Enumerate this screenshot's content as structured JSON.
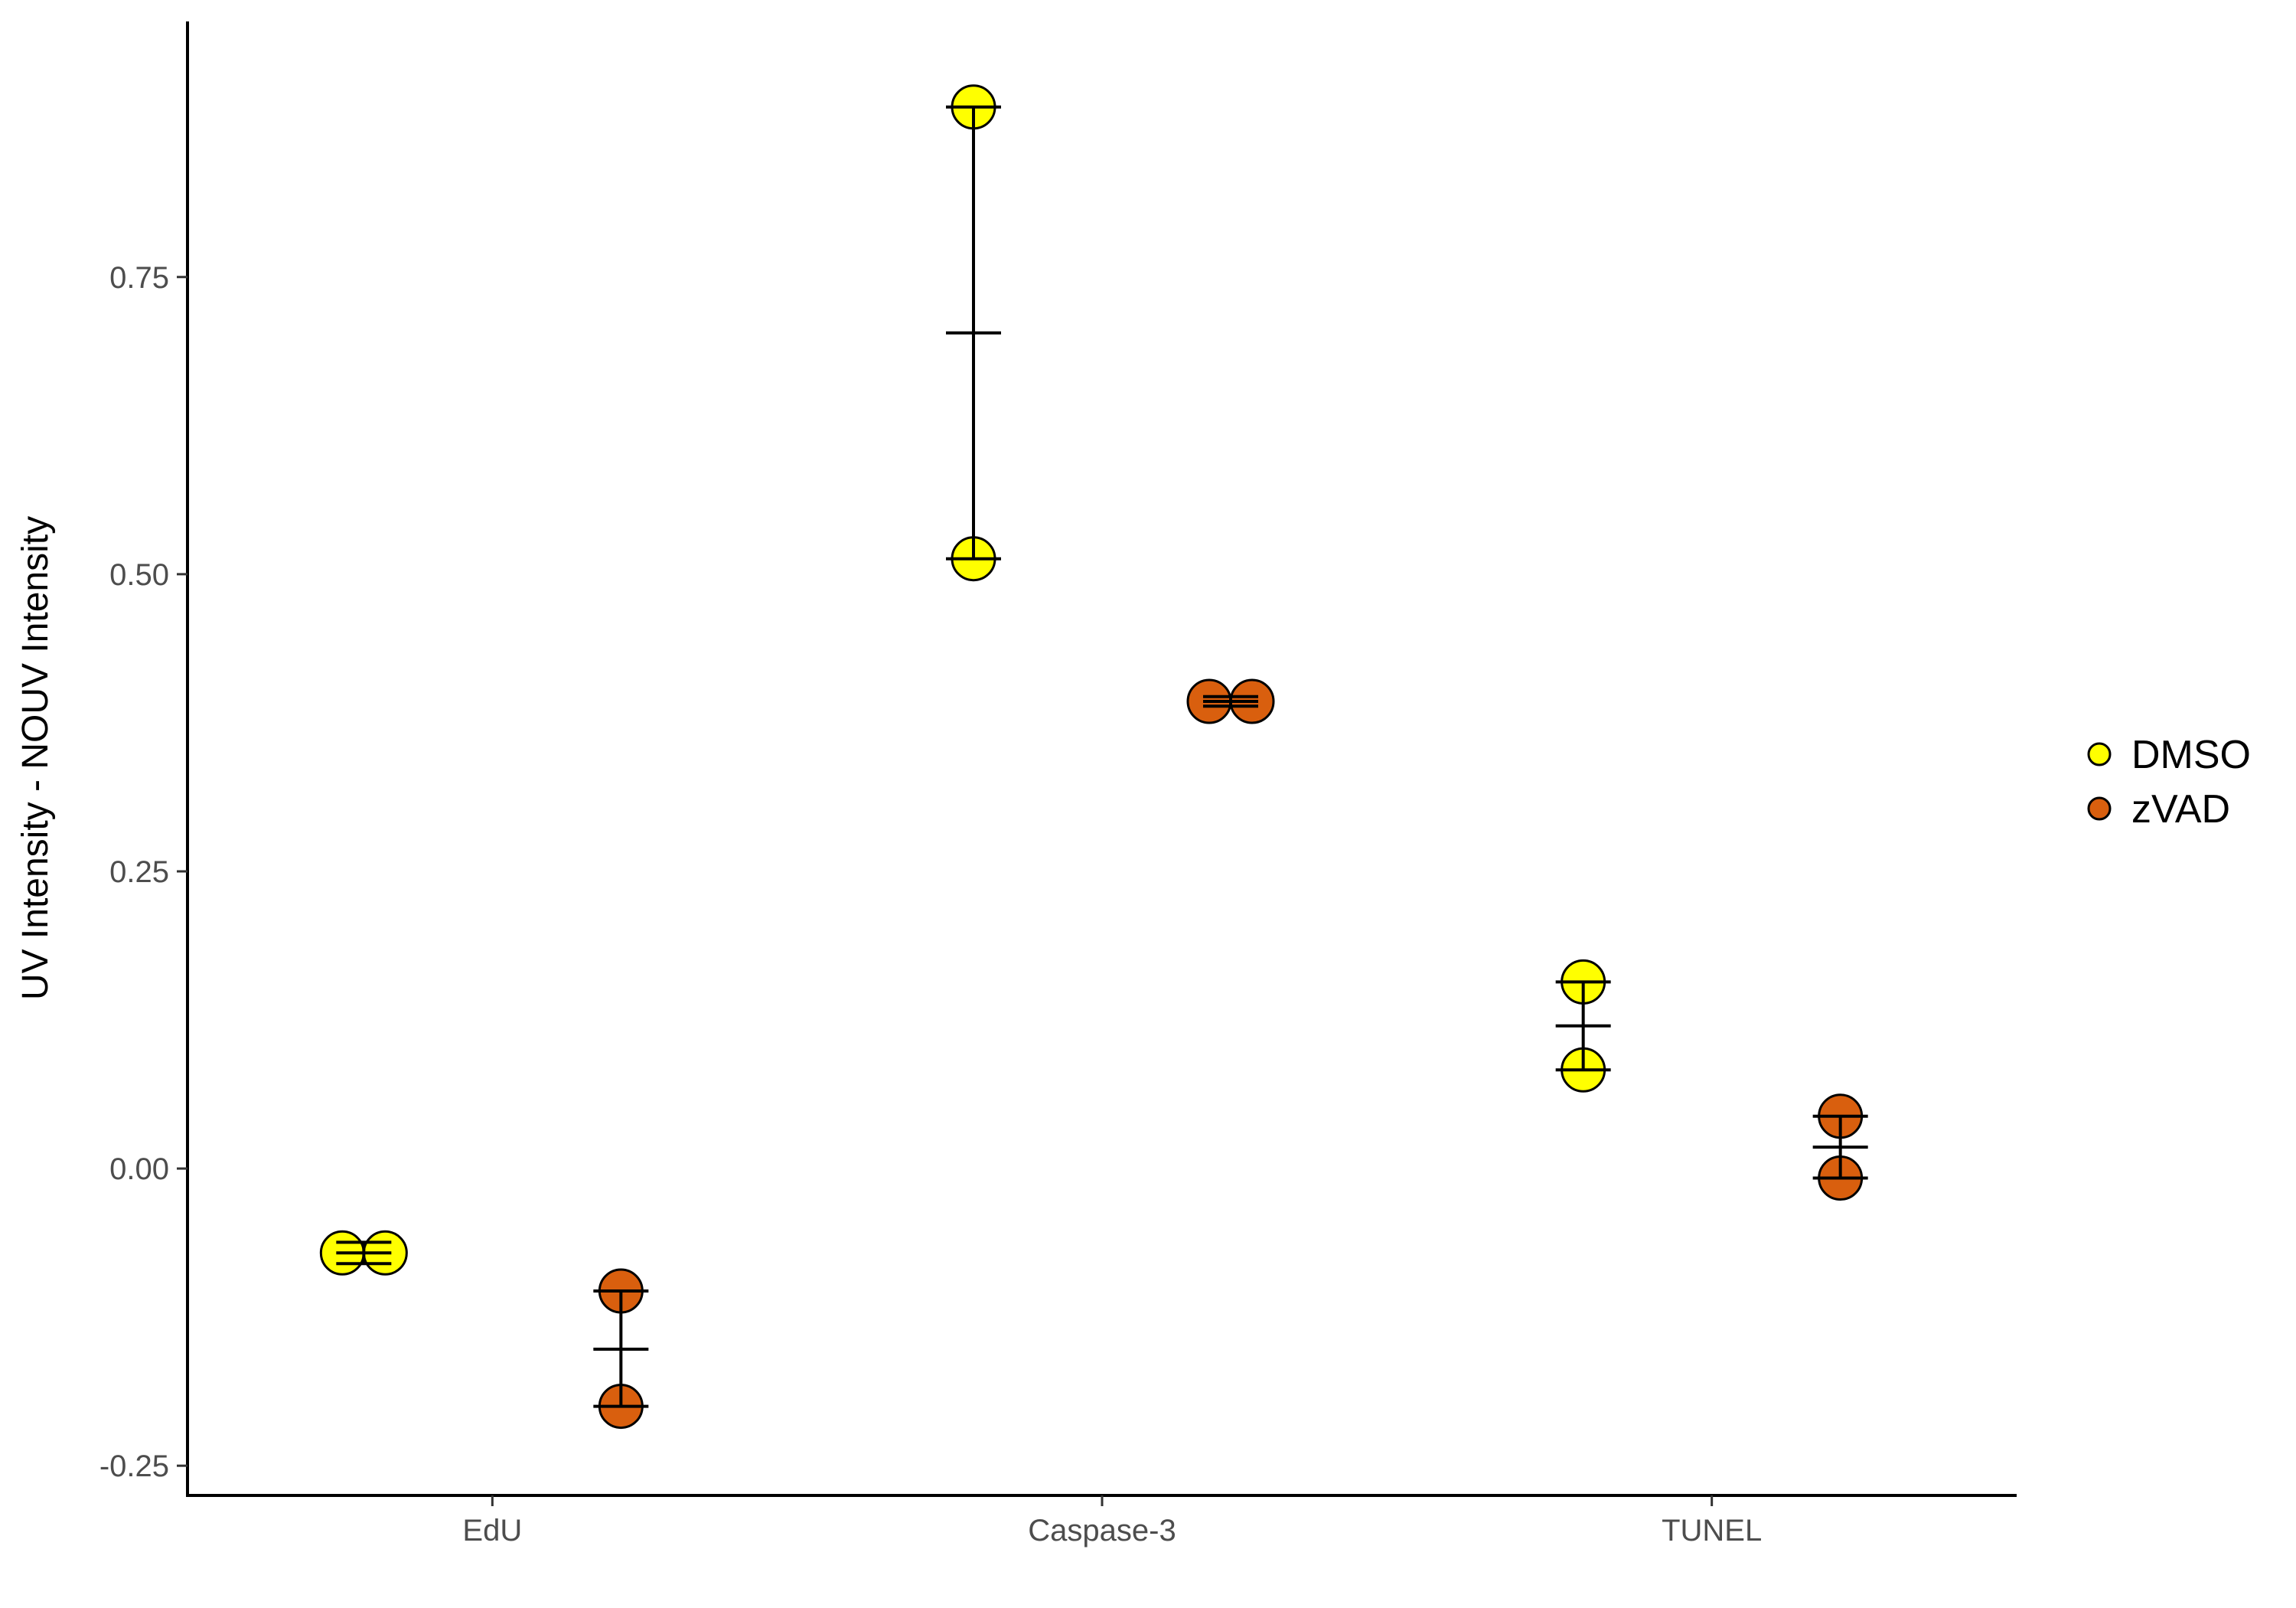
{
  "chart_data": {
    "type": "scatter",
    "title": "",
    "xlabel": "",
    "ylabel": "UV Intensity - NOUV Intensity",
    "categories": [
      "EdU",
      "Caspase-3",
      "TUNEL"
    ],
    "y_ticks": [
      -0.25,
      0.0,
      0.25,
      0.5,
      0.75
    ],
    "y_tick_labels": [
      "-0.25",
      "0.00",
      "0.25",
      "0.50",
      "0.75"
    ],
    "ylim": [
      -0.275,
      0.965
    ],
    "grid": false,
    "legend_position": "right",
    "series": [
      {
        "name": "DMSO",
        "color": "#ffff00",
        "points": [
          {
            "category": "EdU",
            "values": [
              -0.071,
              -0.071
            ]
          },
          {
            "category": "Caspase-3",
            "values": [
              0.893,
              0.513
            ]
          },
          {
            "category": "TUNEL",
            "values": [
              0.157,
              0.083
            ]
          }
        ],
        "summary": [
          {
            "category": "EdU",
            "mean": -0.071,
            "low": -0.08,
            "high": -0.062
          },
          {
            "category": "Caspase-3",
            "mean": 0.703,
            "low": 0.513,
            "high": 0.893
          },
          {
            "category": "TUNEL",
            "mean": 0.12,
            "low": 0.083,
            "high": 0.157
          }
        ]
      },
      {
        "name": "zVAD",
        "color": "#d95f0e",
        "points": [
          {
            "category": "EdU",
            "values": [
              -0.103,
              -0.2
            ]
          },
          {
            "category": "Caspase-3",
            "values": [
              0.393,
              0.393
            ]
          },
          {
            "category": "TUNEL",
            "values": [
              0.044,
              -0.008
            ]
          }
        ],
        "summary": [
          {
            "category": "EdU",
            "mean": -0.152,
            "low": -0.2,
            "high": -0.103
          },
          {
            "category": "Caspase-3",
            "mean": 0.393,
            "low": 0.389,
            "high": 0.397
          },
          {
            "category": "TUNEL",
            "mean": 0.018,
            "low": -0.008,
            "high": 0.044
          }
        ]
      }
    ]
  }
}
